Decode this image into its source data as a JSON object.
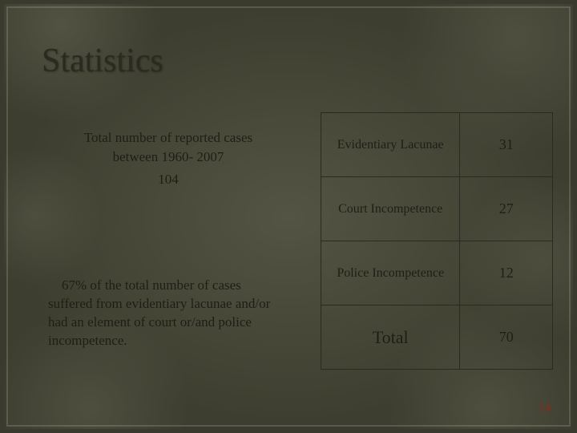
{
  "title": "Statistics",
  "leftTop": {
    "line1": "Total number of reported cases",
    "line2": "between 1960- 2007",
    "count": "104"
  },
  "leftBottom": {
    "text": "    67% of the total number of cases suffered from evidentiary lacunae and/or had an element of court or/and police incompetence."
  },
  "table": {
    "rows": [
      {
        "label": "Evidentiary Lacunae",
        "value": "31"
      },
      {
        "label": "Court Incompetence",
        "value": "27"
      },
      {
        "label": "Police Incompetence",
        "value": "12"
      },
      {
        "label": "Total",
        "value": "70"
      }
    ]
  },
  "pageNumber": "14",
  "colors": {
    "background": "#3a3a2e",
    "text": "#1e1e16",
    "border": "#2a2a20",
    "pageNum": "#8a2a1a"
  }
}
